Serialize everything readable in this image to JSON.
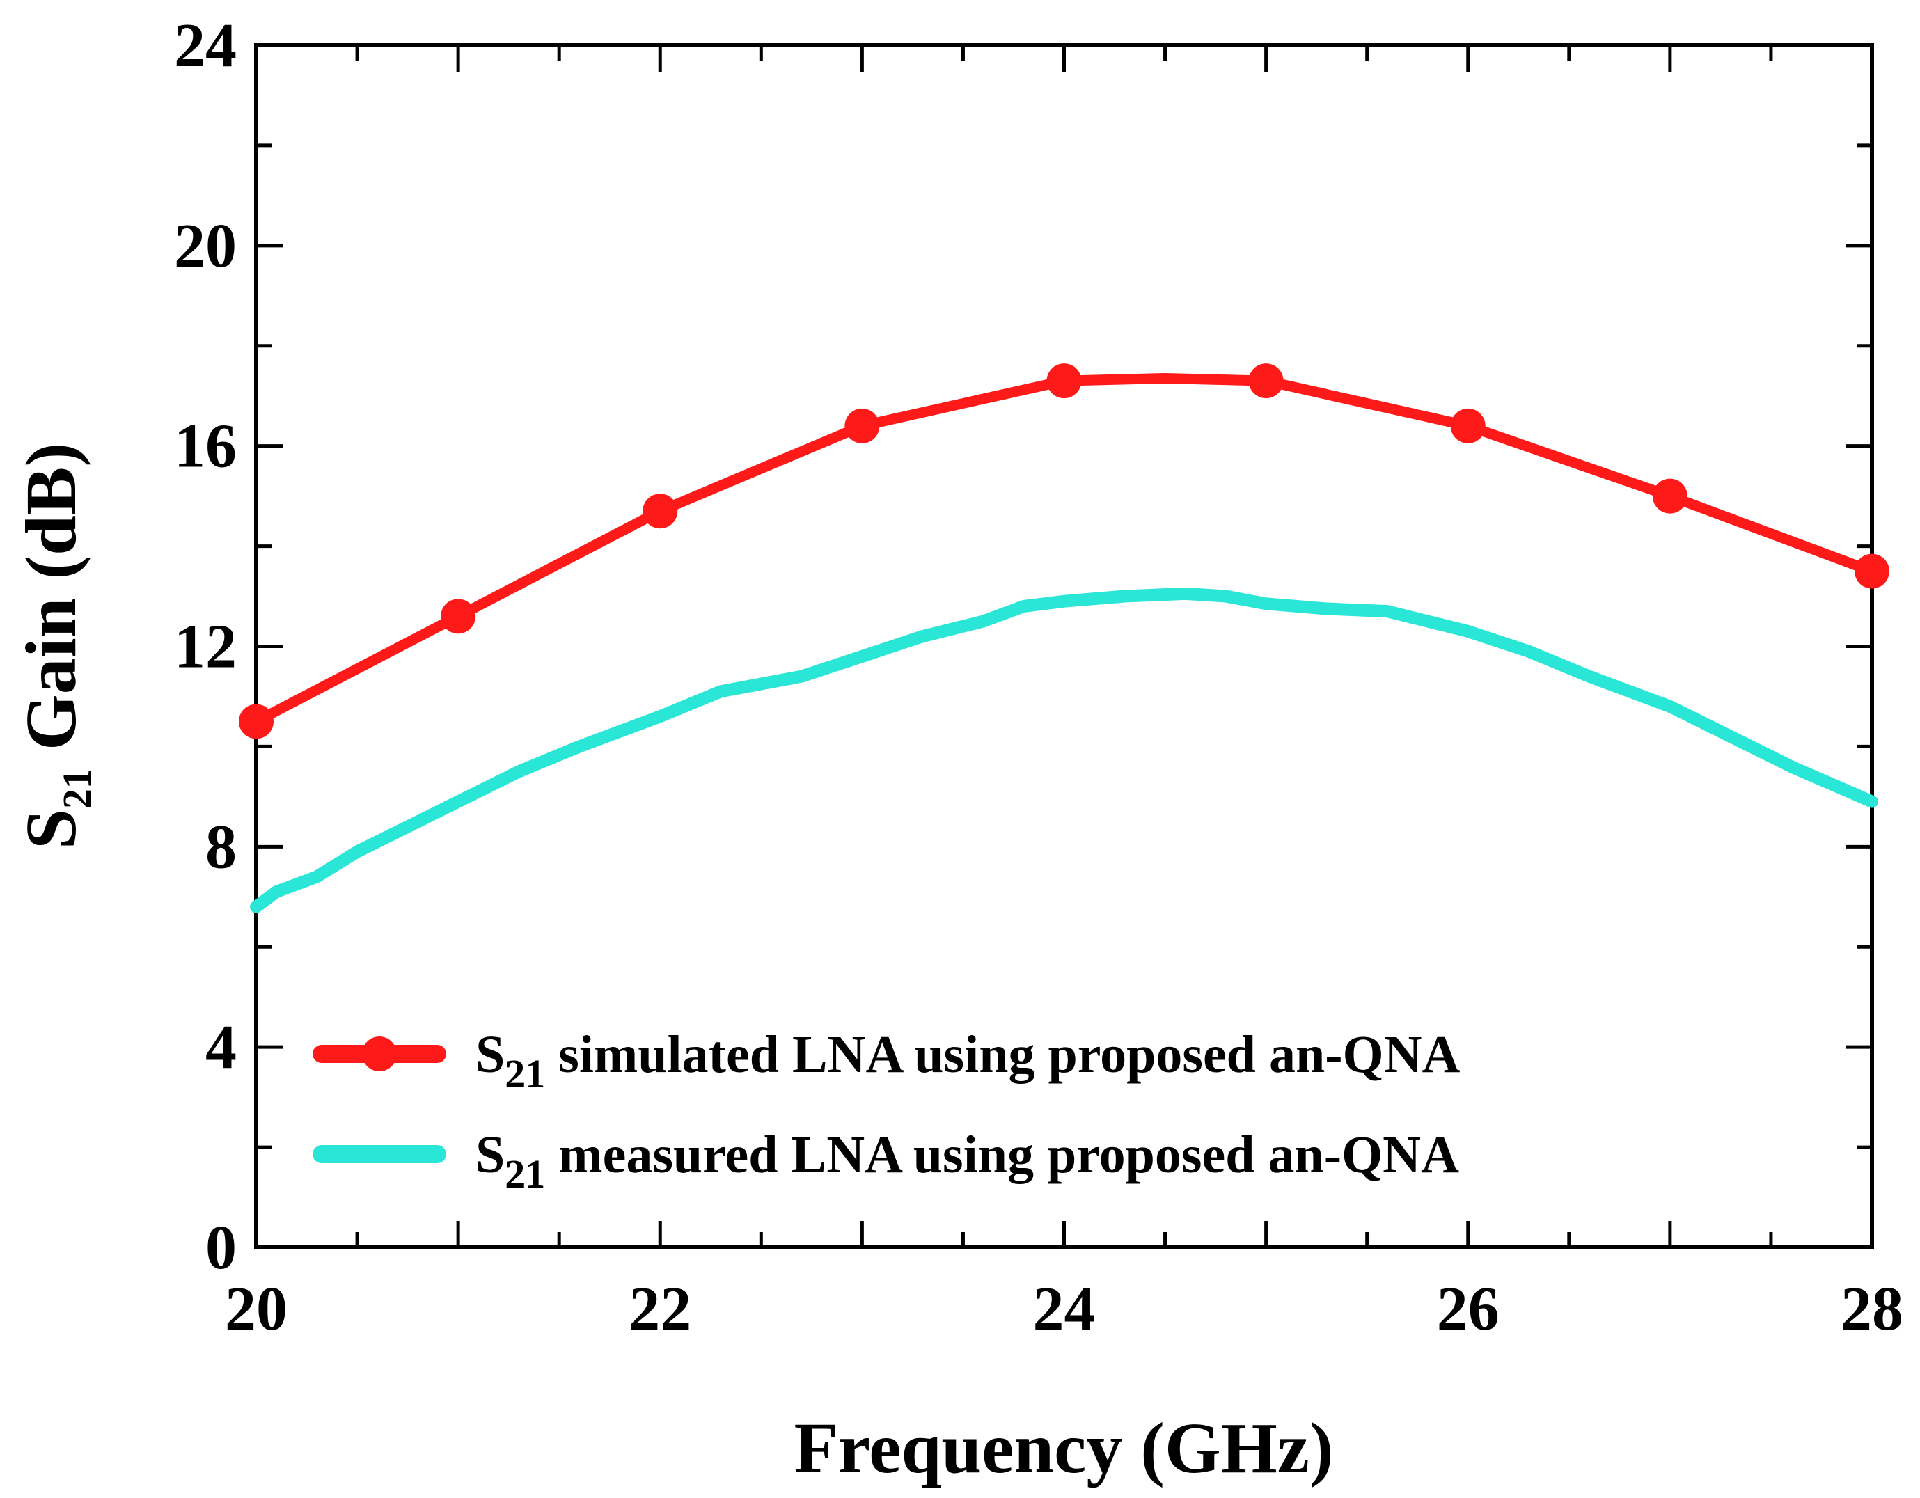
{
  "chart_data": {
    "type": "line",
    "title": "",
    "xlabel": "Frequency (GHz)",
    "ylabel": {
      "main": "S",
      "subscript": "21",
      "rest": " Gain (dB)"
    },
    "xlim": [
      20,
      28
    ],
    "ylim": [
      0,
      24
    ],
    "xticks": [
      20,
      22,
      24,
      26,
      28
    ],
    "yticks": [
      0,
      4,
      8,
      12,
      16,
      20,
      24
    ],
    "grid": false,
    "legend_position": "bottom-left",
    "series": [
      {
        "name": {
          "main": "S",
          "subscript": "21",
          "rest": " simulated LNA using proposed an-QNA"
        },
        "color": "#ff1a1a",
        "marker": "circle",
        "x": [
          20,
          21,
          22,
          23,
          24,
          24.5,
          25,
          26,
          27,
          28
        ],
        "y": [
          10.5,
          12.6,
          14.7,
          16.4,
          17.3,
          17.35,
          17.3,
          16.4,
          15.0,
          13.5
        ],
        "marker_x": [
          20,
          21,
          22,
          23,
          24,
          25,
          26,
          27,
          28
        ],
        "marker_y": [
          10.5,
          12.6,
          14.7,
          16.4,
          17.3,
          17.3,
          16.4,
          15.0,
          13.5
        ]
      },
      {
        "name": {
          "main": "S",
          "subscript": "21",
          "rest": " measured LNA using proposed an-QNA"
        },
        "color": "#29e6d6",
        "marker": "none",
        "x": [
          20,
          20.1,
          20.3,
          20.5,
          20.8,
          21.0,
          21.3,
          21.6,
          22.0,
          22.3,
          22.7,
          23.0,
          23.3,
          23.6,
          23.8,
          24.0,
          24.3,
          24.6,
          24.8,
          25.0,
          25.3,
          25.6,
          26.0,
          26.3,
          26.6,
          27.0,
          27.3,
          27.6,
          28.0
        ],
        "y": [
          6.8,
          7.1,
          7.4,
          7.9,
          8.5,
          8.9,
          9.5,
          10.0,
          10.6,
          11.1,
          11.4,
          11.8,
          12.2,
          12.5,
          12.8,
          12.9,
          13.0,
          13.05,
          13.0,
          12.85,
          12.75,
          12.7,
          12.3,
          11.9,
          11.4,
          10.8,
          10.2,
          9.6,
          8.9
        ]
      }
    ]
  }
}
